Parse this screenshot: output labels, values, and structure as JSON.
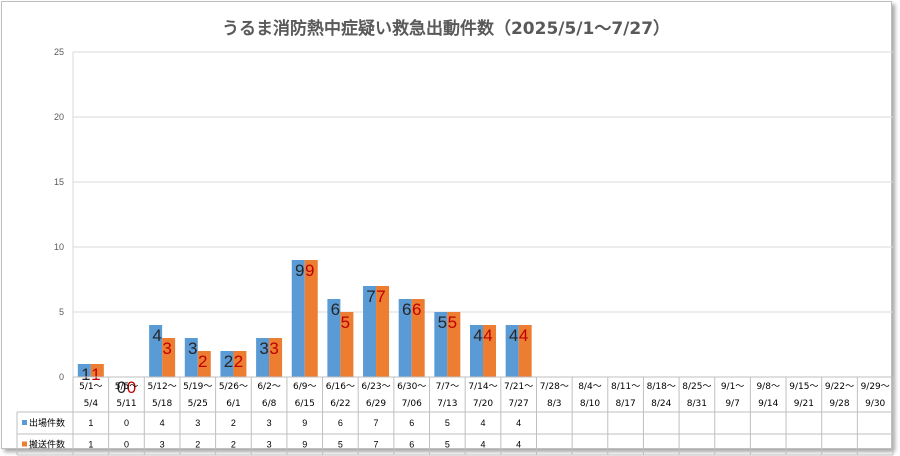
{
  "chart_data": {
    "type": "bar",
    "title": "うるま消防熱中症疑い救急出動件数（2025/5/1～7/27）",
    "ylim": [
      0,
      25
    ],
    "yticks": [
      0,
      5,
      10,
      15,
      20,
      25
    ],
    "grid": true,
    "categories": [
      [
        "5/1～",
        "5/4"
      ],
      [
        "5/5～",
        "5/11"
      ],
      [
        "5/12～",
        "5/18"
      ],
      [
        "5/19～",
        "5/25"
      ],
      [
        "5/26～",
        "6/1"
      ],
      [
        "6/2～",
        "6/8"
      ],
      [
        "6/9～",
        "6/15"
      ],
      [
        "6/16～",
        "6/22"
      ],
      [
        "6/23～",
        "6/29"
      ],
      [
        "6/30～",
        "7/06"
      ],
      [
        "7/7～",
        "7/13"
      ],
      [
        "7/14～",
        "7/20"
      ],
      [
        "7/21～",
        "7/27"
      ],
      [
        "7/28～",
        "8/3"
      ],
      [
        "8/4～",
        "8/10"
      ],
      [
        "8/11～",
        "8/17"
      ],
      [
        "8/18～",
        "8/24"
      ],
      [
        "8/25～",
        "8/31"
      ],
      [
        "9/1～",
        "9/7"
      ],
      [
        "9/8～",
        "9/14"
      ],
      [
        "9/15～",
        "9/21"
      ],
      [
        "9/22～",
        "9/28"
      ],
      [
        "9/29～",
        "9/30"
      ]
    ],
    "series": [
      {
        "name": "出場件数",
        "color": "#5b9bd5",
        "label_color": "#262626",
        "values": [
          1,
          0,
          4,
          3,
          2,
          3,
          9,
          6,
          7,
          6,
          5,
          4,
          4,
          null,
          null,
          null,
          null,
          null,
          null,
          null,
          null,
          null,
          null
        ]
      },
      {
        "name": "搬送件数",
        "color": "#ed7d31",
        "label_color": "#c00000",
        "values": [
          1,
          0,
          3,
          2,
          2,
          3,
          9,
          5,
          7,
          6,
          5,
          4,
          4,
          null,
          null,
          null,
          null,
          null,
          null,
          null,
          null,
          null,
          null
        ]
      }
    ]
  }
}
